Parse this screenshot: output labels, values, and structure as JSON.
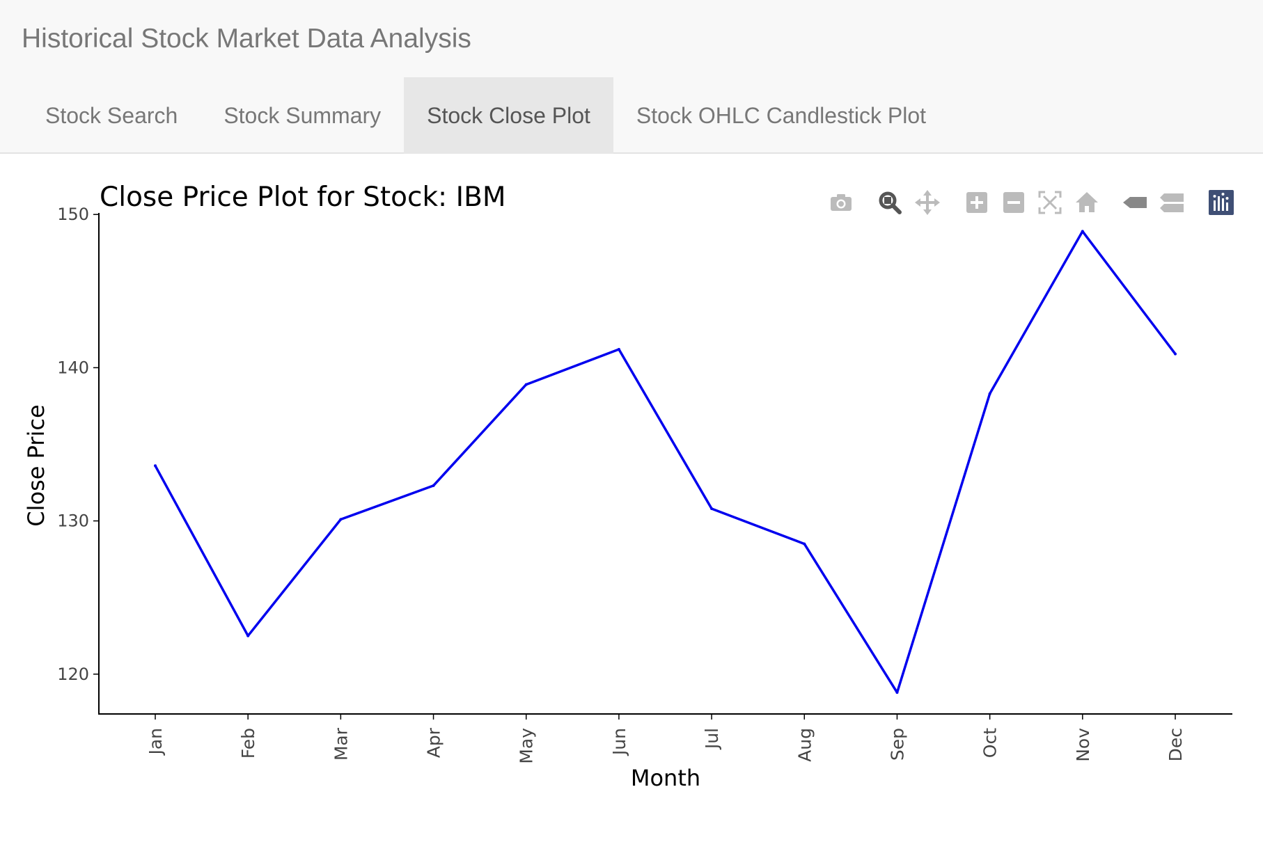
{
  "app": {
    "title": "Historical Stock Market Data Analysis"
  },
  "tabs": [
    {
      "label": "Stock Search",
      "active": false
    },
    {
      "label": "Stock Summary",
      "active": false
    },
    {
      "label": "Stock Close Plot",
      "active": true
    },
    {
      "label": "Stock OHLC Candlestick Plot",
      "active": false
    }
  ],
  "modebar": {
    "icons": [
      "camera-icon",
      "zoom-icon",
      "pan-icon",
      "zoom-in-icon",
      "zoom-out-icon",
      "autoscale-icon",
      "reset-axes-icon",
      "hover-closest-icon",
      "hover-compare-icon",
      "plotly-logo-icon"
    ]
  },
  "colors": {
    "line": "#0000ee",
    "active_tab_bg": "#e7e7e7",
    "navbar_bg": "#f8f8f8",
    "modebar_icon": "#bbbbbb",
    "modebar_icon_active": "#555555",
    "plotly_logo": "#3f4f75"
  },
  "chart_data": {
    "type": "line",
    "title": "Close Price Plot for Stock: IBM",
    "xlabel": "Month",
    "ylabel": "Close Price",
    "categories": [
      "Jan",
      "Feb",
      "Mar",
      "Apr",
      "May",
      "Jun",
      "Jul",
      "Aug",
      "Sep",
      "Oct",
      "Nov",
      "Dec"
    ],
    "series": [
      {
        "values": [
          133.6,
          122.5,
          130.1,
          132.3,
          138.9,
          141.2,
          130.8,
          128.5,
          118.8,
          138.3,
          148.9,
          140.9
        ]
      }
    ],
    "yticks": [
      120,
      130,
      140,
      150
    ],
    "ylim": [
      117.4,
      150.1
    ],
    "grid": false,
    "legend": false
  }
}
